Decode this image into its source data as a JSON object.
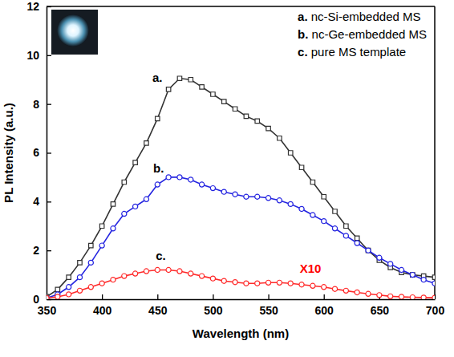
{
  "chart_data": {
    "type": "line",
    "x_label": "Wavelength (nm)",
    "y_label": "PL Intensity (a.u.)",
    "x": [
      350,
      360,
      370,
      380,
      390,
      400,
      410,
      420,
      430,
      440,
      450,
      460,
      470,
      480,
      490,
      500,
      510,
      520,
      530,
      540,
      550,
      560,
      570,
      580,
      590,
      600,
      610,
      620,
      630,
      640,
      650,
      660,
      670,
      680,
      690,
      700
    ],
    "series": [
      {
        "name": "a. nc-Si-embedded MS",
        "color": "#333333",
        "marker": "square",
        "line_style": "solid",
        "values": [
          0.1,
          0.4,
          0.9,
          1.5,
          2.2,
          3.0,
          3.9,
          4.8,
          5.6,
          6.4,
          7.4,
          8.6,
          9.05,
          9.0,
          8.7,
          8.4,
          8.1,
          7.8,
          7.5,
          7.3,
          7.0,
          6.6,
          6.0,
          5.4,
          4.8,
          4.2,
          3.6,
          3.0,
          2.5,
          2.0,
          1.6,
          1.3,
          1.1,
          1.0,
          0.95,
          0.9
        ]
      },
      {
        "name": "b. nc-Ge-embedded MS",
        "color": "#2424e0",
        "marker": "circle",
        "line_style": "solid",
        "values": [
          0.05,
          0.2,
          0.5,
          0.9,
          1.5,
          2.2,
          2.9,
          3.5,
          3.8,
          4.1,
          4.7,
          5.0,
          5.0,
          4.9,
          4.7,
          4.55,
          4.4,
          4.3,
          4.2,
          4.2,
          4.15,
          4.05,
          3.9,
          3.7,
          3.45,
          3.2,
          2.9,
          2.6,
          2.3,
          2.0,
          1.7,
          1.45,
          1.2,
          1.0,
          0.8,
          0.65
        ]
      },
      {
        "name": "c. pure MS template",
        "color": "#ff2a2a",
        "marker": "circle",
        "line_style": "solid",
        "values": [
          0.05,
          0.1,
          0.2,
          0.35,
          0.5,
          0.65,
          0.8,
          0.95,
          1.05,
          1.15,
          1.2,
          1.2,
          1.15,
          1.05,
          0.95,
          0.85,
          0.75,
          0.7,
          0.65,
          0.65,
          0.68,
          0.68,
          0.65,
          0.6,
          0.55,
          0.5,
          0.42,
          0.35,
          0.28,
          0.22,
          0.17,
          0.12,
          0.1,
          0.08,
          0.07,
          0.06
        ]
      }
    ],
    "annotations": [
      {
        "text": "a.",
        "x": 450,
        "y": 8.9,
        "color": "#000000"
      },
      {
        "text": "b.",
        "x": 451,
        "y": 5.2,
        "color": "#000000"
      },
      {
        "text": "c.",
        "x": 453,
        "y": 1.6,
        "color": "#000000"
      },
      {
        "text": "X10",
        "x": 588,
        "y": 1.1,
        "color": "#ff0000"
      }
    ],
    "xlim": [
      350,
      700
    ],
    "ylim": [
      0,
      12
    ],
    "xticks": [
      350,
      400,
      450,
      500,
      550,
      600,
      650,
      700
    ],
    "yticks": [
      0,
      2,
      4,
      6,
      8,
      10,
      12
    ],
    "legend": "top-right",
    "grid": false
  }
}
